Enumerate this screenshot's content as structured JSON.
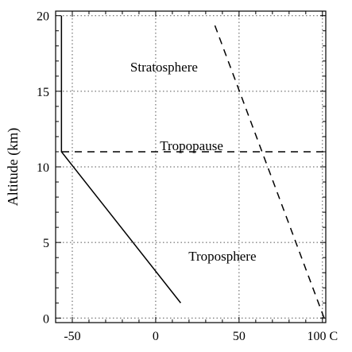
{
  "chart_data": {
    "type": "line",
    "title": "",
    "xlabel": "",
    "ylabel": "Altitude (km)",
    "x_unit_suffix": " C",
    "xlim": [
      -60,
      102
    ],
    "ylim": [
      -0.3,
      20.3
    ],
    "xticks": [
      -50,
      0,
      50,
      100
    ],
    "yticks": [
      0,
      5,
      10,
      15,
      20
    ],
    "grid": true,
    "series": [
      {
        "style": "solid",
        "x": [
          15,
          -56.5,
          -56.5
        ],
        "y": [
          1,
          11,
          20
        ]
      },
      {
        "style": "dashed",
        "x": [
          101,
          35
        ],
        "y": [
          0,
          19.5
        ]
      }
    ],
    "reference_lines": [
      {
        "orientation": "horizontal",
        "y": 11,
        "style": "dashed",
        "label": "Tropopause"
      }
    ],
    "annotations": [
      {
        "text": "Stratosphere",
        "x": 5,
        "y": 16.3
      },
      {
        "text": "Troposphere",
        "x": 40,
        "y": 3.8
      }
    ]
  }
}
